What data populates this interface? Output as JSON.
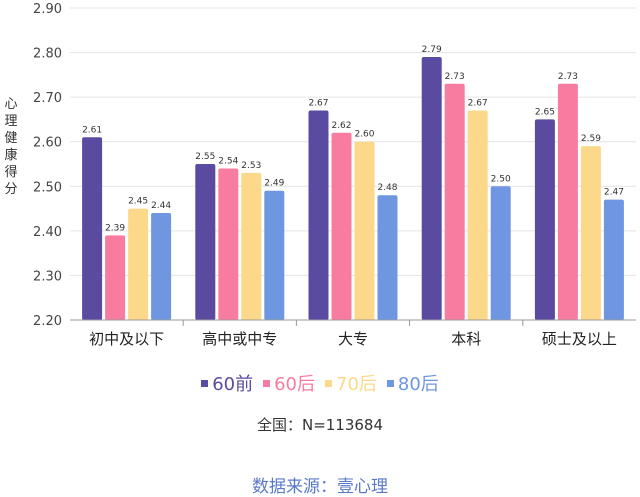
{
  "chart_data": {
    "type": "bar",
    "ylabel": "心理健康得分",
    "ylim": [
      2.2,
      2.9
    ],
    "yticks": [
      "2.20",
      "2.30",
      "2.40",
      "2.50",
      "2.60",
      "2.70",
      "2.80",
      "2.90"
    ],
    "categories": [
      "初中及以下",
      "高中或中专",
      "大专",
      "本科",
      "硕士及以上"
    ],
    "series": [
      {
        "name": "60前",
        "color": "#5b4ba0",
        "values": [
          2.61,
          2.55,
          2.67,
          2.79,
          2.65
        ]
      },
      {
        "name": "60后",
        "color": "#f87ca0",
        "values": [
          2.39,
          2.54,
          2.62,
          2.73,
          2.73
        ]
      },
      {
        "name": "70后",
        "color": "#fcd98a",
        "values": [
          2.45,
          2.53,
          2.6,
          2.67,
          2.59
        ]
      },
      {
        "name": "80后",
        "color": "#6f96e0",
        "values": [
          2.44,
          2.49,
          2.48,
          2.5,
          2.47
        ]
      }
    ],
    "data_labels": [
      [
        "2.61",
        "2.39",
        "2.45",
        "2.44"
      ],
      [
        "2.55",
        "2.54",
        "2.53",
        "2.49"
      ],
      [
        "2.67",
        "2.62",
        "2.60",
        "2.48"
      ],
      [
        "2.79",
        "2.73",
        "2.67",
        "2.50"
      ],
      [
        "2.65",
        "2.73",
        "2.59",
        "2.47"
      ]
    ],
    "grid": true,
    "legend_position": "bottom"
  },
  "note": "全国：N=113684",
  "source": "数据来源：壹心理"
}
